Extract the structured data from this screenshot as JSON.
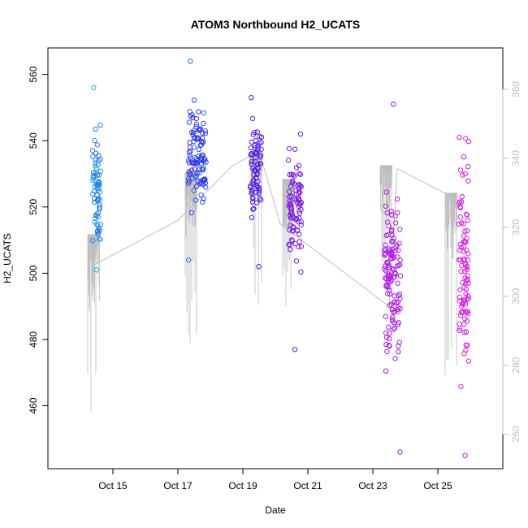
{
  "chart_data": {
    "type": "scatter",
    "title": "ATOM3 Northbound H2_UCATS",
    "xlabel": "Date",
    "ylabel": "H2_UCATS",
    "x_ticks": [
      "Oct 15",
      "Oct 17",
      "Oct 19",
      "Oct 21",
      "Oct 23",
      "Oct 25"
    ],
    "x_tick_dates": [
      "2017-10-15",
      "2017-10-17",
      "2017-10-19",
      "2017-10-21",
      "2017-10-23",
      "2017-10-25"
    ],
    "xlim": [
      "2017-10-13",
      "2017-10-27"
    ],
    "y_ticks": [
      460,
      480,
      500,
      520,
      540,
      560
    ],
    "ylim": [
      441,
      568
    ],
    "right_axis_ticks": [
      260,
      280,
      300,
      320,
      340,
      360
    ],
    "right_axis_range": [
      250,
      372
    ],
    "grid": false,
    "colors": {
      "point_start": "#1eaee8",
      "point_mid": "#3a1ee8",
      "point_end": "#ee1ee8",
      "secondary_line": "#bebebe"
    },
    "clusters": [
      {
        "date": "2017-10-14",
        "center": 524,
        "spread": 14,
        "count": 70,
        "min": 501,
        "max": 556
      },
      {
        "date": "2017-10-17",
        "center": 534,
        "spread": 12,
        "count": 110,
        "min": 504,
        "max": 564
      },
      {
        "date": "2017-10-19",
        "center": 532,
        "spread": 10,
        "count": 70,
        "min": 502,
        "max": 553
      },
      {
        "date": "2017-10-20",
        "center": 520,
        "spread": 14,
        "count": 90,
        "min": 477,
        "max": 542
      },
      {
        "date": "2017-10-23",
        "center": 500,
        "spread": 20,
        "count": 130,
        "min": 446,
        "max": 551
      },
      {
        "date": "2017-10-25",
        "center": 502,
        "spread": 26,
        "count": 100,
        "min": 445,
        "max": 541
      }
    ],
    "secondary_series": {
      "axis": "right",
      "overview": [
        {
          "date": "2017-10-14",
          "value": 309
        },
        {
          "date": "2017-10-17",
          "value": 322
        },
        {
          "date": "2017-10-18",
          "value": 338
        },
        {
          "date": "2017-10-19",
          "value": 342
        },
        {
          "date": "2017-10-20",
          "value": 321
        },
        {
          "date": "2017-10-23",
          "value": 297
        },
        {
          "date": "2017-10-23",
          "value": 337
        },
        {
          "date": "2017-10-25",
          "value": 328
        }
      ],
      "dips": [
        {
          "date": "2017-10-14",
          "min": 256,
          "max": 318
        },
        {
          "date": "2017-10-17",
          "min": 280,
          "max": 336
        },
        {
          "date": "2017-10-19",
          "min": 297,
          "max": 342
        },
        {
          "date": "2017-10-20",
          "min": 290,
          "max": 334
        },
        {
          "date": "2017-10-23",
          "min": 293,
          "max": 338
        },
        {
          "date": "2017-10-25",
          "min": 275,
          "max": 330
        }
      ]
    }
  }
}
